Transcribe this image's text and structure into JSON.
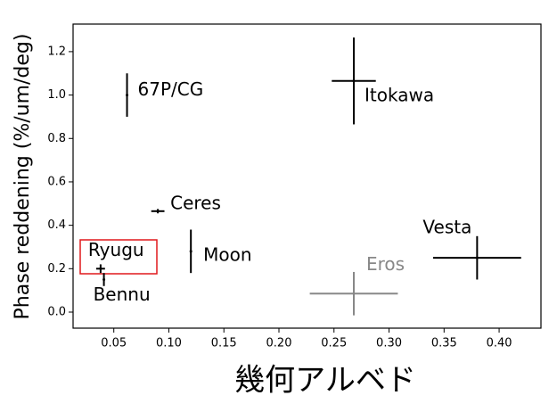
{
  "chart_data": {
    "type": "errorbar",
    "xlabel": "幾何アルベド",
    "ylabel": "Phase reddening (%/um/deg)",
    "xlim": [
      0.013,
      0.438
    ],
    "ylim": [
      -0.074,
      1.327
    ],
    "xticks": [
      {
        "value": 0.05,
        "label": "0.05"
      },
      {
        "value": 0.1,
        "label": "0.10"
      },
      0.15,
      {
        "value": 0.2,
        "label": "0.20"
      },
      0.25,
      {
        "value": 0.3,
        "label": "0.30"
      },
      0.35,
      {
        "value": 0.4,
        "label": "0.40"
      }
    ],
    "yticks": [
      {
        "value": 0,
        "label": "0.0"
      },
      0.2,
      0.4,
      0.6,
      0.8,
      {
        "value": 1,
        "label": "1.0"
      },
      1.2
    ],
    "points": [
      {
        "name": "67P/CG",
        "x": 0.062,
        "y": 1.0,
        "xerr": 0.0,
        "yerr": 0.1,
        "color": "#000000"
      },
      {
        "name": "Itokawa",
        "x": 0.268,
        "y": 1.065,
        "xerr": 0.02,
        "yerr": 0.2,
        "color": "#000000"
      },
      {
        "name": "Ceres",
        "x": 0.09,
        "y": 0.465,
        "xerr": 0.006,
        "yerr": 0.01,
        "color": "#000000"
      },
      {
        "name": "Moon",
        "x": 0.12,
        "y": 0.28,
        "xerr": 0.0,
        "yerr": 0.1,
        "color": "#000000"
      },
      {
        "name": "Ryugu",
        "x": 0.038,
        "y": 0.2,
        "xerr": 0.004,
        "yerr": 0.02,
        "color": "#000000"
      },
      {
        "name": "Bennu",
        "x": 0.041,
        "y": 0.15,
        "xerr": 0.0,
        "yerr": 0.03,
        "color": "#000000"
      },
      {
        "name": "Eros",
        "x": 0.268,
        "y": 0.085,
        "xerr": 0.04,
        "yerr": 0.1,
        "color": "#888888"
      },
      {
        "name": "Vesta",
        "x": 0.38,
        "y": 0.25,
        "xerr": 0.04,
        "yerr": 0.1,
        "color": "#000000"
      }
    ]
  }
}
